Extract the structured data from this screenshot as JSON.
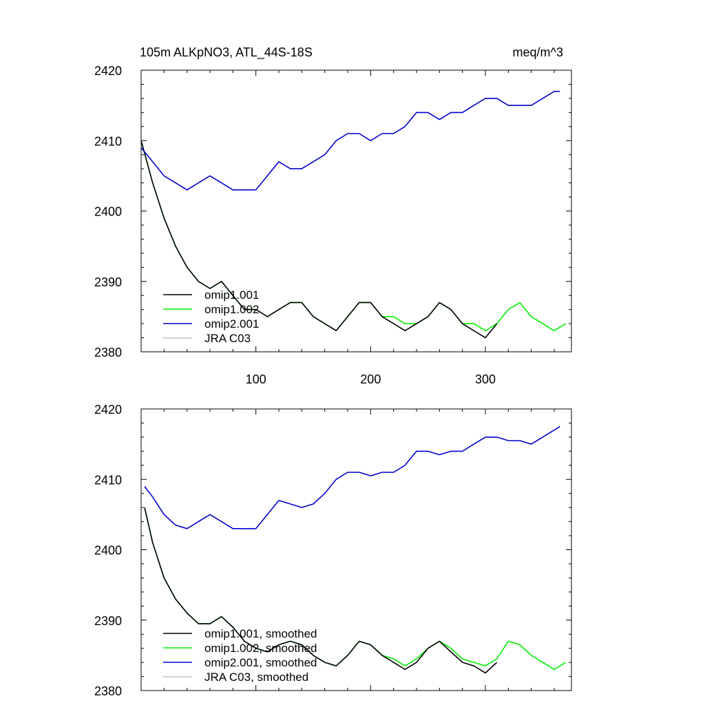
{
  "colors": {
    "omip1_001": "#000000",
    "omip1_002": "#00ee00",
    "omip2_001": "#0000cc",
    "jra_c03": "#c0c0c0"
  },
  "chart_data": [
    {
      "type": "line",
      "title": "105m ALKpNO3, ATL_44S-18S",
      "units": "meq/m^3",
      "xlim": [
        0,
        375
      ],
      "ylim": [
        2380,
        2420
      ],
      "xticks": [
        100,
        200,
        300
      ],
      "xtick_labels": [
        "100",
        "200",
        "300"
      ],
      "yticks": [
        2380,
        2390,
        2400,
        2410,
        2420
      ],
      "ytick_labels": [
        "2380",
        "2390",
        "2400",
        "2410",
        "2420"
      ],
      "legend_position": "lower-left",
      "legend": [
        "omip1.001",
        "omip1.002",
        "omip2.001",
        "JRA C03"
      ],
      "series": [
        {
          "name": "omip1.001",
          "color_key": "omip1_001",
          "x": [
            0,
            10,
            20,
            30,
            40,
            50,
            60,
            70,
            80,
            90,
            100,
            110,
            120,
            130,
            140,
            150,
            160,
            170,
            180,
            190,
            200,
            210,
            220,
            230,
            240,
            250,
            260,
            270,
            280,
            290,
            300,
            310
          ],
          "y": [
            2410,
            2404,
            2399,
            2395,
            2392,
            2390,
            2389,
            2390,
            2388,
            2386,
            2386,
            2385,
            2386,
            2387,
            2387,
            2385,
            2384,
            2383,
            2385,
            2387,
            2387,
            2385,
            2384,
            2383,
            2384,
            2385,
            2387,
            2386,
            2384,
            2383,
            2382,
            2384
          ]
        },
        {
          "name": "omip1.002",
          "color_key": "omip1_002",
          "x": [
            0,
            10,
            20,
            30,
            40,
            50,
            60,
            70,
            80,
            90,
            100,
            110,
            120,
            130,
            140,
            150,
            160,
            170,
            180,
            190,
            200,
            210,
            220,
            230,
            240,
            250,
            260,
            270,
            280,
            290,
            300,
            310,
            320,
            330,
            340,
            350,
            360,
            370
          ],
          "y": [
            2410,
            2404,
            2399,
            2395,
            2392,
            2390,
            2389,
            2390,
            2388,
            2386,
            2386,
            2385,
            2386,
            2387,
            2387,
            2385,
            2384,
            2383,
            2385,
            2387,
            2387,
            2385,
            2385,
            2384,
            2384,
            2385,
            2387,
            2386,
            2384,
            2384,
            2383,
            2384,
            2386,
            2387,
            2385,
            2384,
            2383,
            2384
          ]
        },
        {
          "name": "omip2.001",
          "color_key": "omip2_001",
          "x": [
            0,
            10,
            20,
            30,
            40,
            50,
            60,
            70,
            80,
            90,
            100,
            110,
            120,
            130,
            140,
            150,
            160,
            170,
            180,
            190,
            200,
            210,
            220,
            230,
            240,
            250,
            260,
            270,
            280,
            290,
            300,
            310,
            320,
            330,
            340,
            350,
            360,
            365
          ],
          "y": [
            2409,
            2407,
            2405,
            2404,
            2403,
            2404,
            2405,
            2404,
            2403,
            2403,
            2403,
            2405,
            2407,
            2406,
            2406,
            2407,
            2408,
            2410,
            2411,
            2411,
            2410,
            2411,
            2411,
            2412,
            2414,
            2414,
            2413,
            2414,
            2414,
            2415,
            2416,
            2416,
            2415,
            2415,
            2415,
            2416,
            2417,
            2417
          ]
        }
      ]
    },
    {
      "type": "line",
      "title": "",
      "xlim": [
        0,
        375
      ],
      "ylim": [
        2380,
        2420
      ],
      "xticks": [
        100,
        200,
        300
      ],
      "yticks": [
        2380,
        2390,
        2400,
        2410,
        2420
      ],
      "ytick_labels": [
        "2380",
        "2390",
        "2400",
        "2410",
        "2420"
      ],
      "legend_position": "lower-left",
      "legend": [
        "omip1.001, smoothed",
        "omip1.002, smoothed",
        "omip2.001, smoothed",
        "JRA C03, smoothed"
      ],
      "series": [
        {
          "name": "omip1.001, smoothed",
          "color_key": "omip1_001",
          "x": [
            3,
            10,
            20,
            30,
            40,
            50,
            60,
            70,
            80,
            90,
            100,
            110,
            120,
            130,
            140,
            150,
            160,
            170,
            180,
            190,
            200,
            210,
            220,
            230,
            240,
            250,
            260,
            270,
            280,
            290,
            300,
            310
          ],
          "y": [
            2406,
            2401,
            2396,
            2393,
            2391,
            2389.5,
            2389.5,
            2390.5,
            2389,
            2387,
            2386,
            2385.5,
            2386.5,
            2387,
            2386.5,
            2385,
            2384,
            2383.5,
            2385,
            2387,
            2386.5,
            2385,
            2384,
            2383,
            2384,
            2386,
            2387,
            2385.5,
            2384,
            2383.5,
            2382.5,
            2384
          ]
        },
        {
          "name": "omip1.002, smoothed",
          "color_key": "omip1_002",
          "x": [
            3,
            10,
            20,
            30,
            40,
            50,
            60,
            70,
            80,
            90,
            100,
            110,
            120,
            130,
            140,
            150,
            160,
            170,
            180,
            190,
            200,
            210,
            220,
            230,
            240,
            250,
            260,
            270,
            280,
            290,
            300,
            310,
            320,
            330,
            340,
            350,
            360,
            370
          ],
          "y": [
            2406,
            2401,
            2396,
            2393,
            2391,
            2389.5,
            2389.5,
            2390.5,
            2389,
            2387,
            2386,
            2385.5,
            2386.5,
            2387,
            2386.5,
            2385,
            2384,
            2383.5,
            2385,
            2387,
            2386.5,
            2385,
            2384.5,
            2383.5,
            2384.5,
            2386,
            2387,
            2386,
            2384.5,
            2384,
            2383.5,
            2384.5,
            2387,
            2386.5,
            2385,
            2384,
            2383,
            2384
          ]
        },
        {
          "name": "omip2.001, smoothed",
          "color_key": "omip2_001",
          "x": [
            3,
            10,
            20,
            30,
            40,
            50,
            60,
            70,
            80,
            90,
            100,
            110,
            120,
            130,
            140,
            150,
            160,
            170,
            180,
            190,
            200,
            210,
            220,
            230,
            240,
            250,
            260,
            270,
            280,
            290,
            300,
            310,
            320,
            330,
            340,
            350,
            360,
            365
          ],
          "y": [
            2409,
            2407.5,
            2405,
            2403.5,
            2403,
            2404,
            2405,
            2404,
            2403,
            2403,
            2403,
            2405,
            2407,
            2406.5,
            2406,
            2406.5,
            2408,
            2410,
            2411,
            2411,
            2410.5,
            2411,
            2411,
            2412,
            2414,
            2414,
            2413.5,
            2414,
            2414,
            2415,
            2416,
            2416,
            2415.5,
            2415.5,
            2415,
            2416,
            2417,
            2417.5
          ]
        }
      ]
    }
  ]
}
